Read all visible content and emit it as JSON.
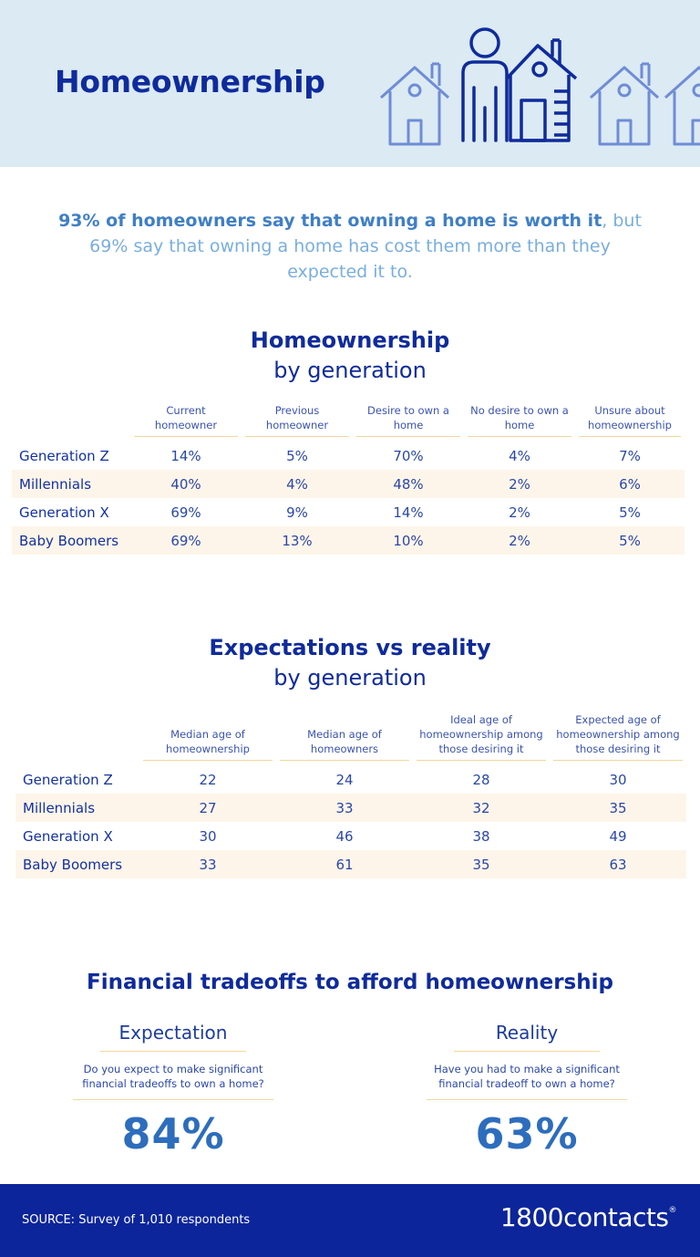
{
  "header": {
    "title": "Homeownership"
  },
  "intro": {
    "bold": "93% of homeowners say that owning a home is worth it",
    "rest": ", but 69% say that owning a home has cost them more than they expected it to."
  },
  "ownership": {
    "title": "Homeownership",
    "subtitle": "by generation",
    "columns": [
      "Current homeowner",
      "Previous homeowner",
      "Desire to own a home",
      "No desire to own a home",
      "Unsure about homeownership"
    ],
    "rows": [
      {
        "label": "Generation Z",
        "values": [
          "14%",
          "5%",
          "70%",
          "4%",
          "7%"
        ]
      },
      {
        "label": "Millennials",
        "values": [
          "40%",
          "4%",
          "48%",
          "2%",
          "6%"
        ]
      },
      {
        "label": "Generation X",
        "values": [
          "69%",
          "9%",
          "14%",
          "2%",
          "5%"
        ]
      },
      {
        "label": "Baby Boomers",
        "values": [
          "69%",
          "13%",
          "10%",
          "2%",
          "5%"
        ]
      }
    ]
  },
  "expectations": {
    "title": "Expectations vs reality",
    "subtitle": "by generation",
    "columns": [
      "Median age of homeownership",
      "Median age of homeowners",
      "Ideal age of homeownership among those desiring it",
      "Expected age of homeownership among those desiring it"
    ],
    "rows": [
      {
        "label": "Generation Z",
        "values": [
          "22",
          "24",
          "28",
          "30"
        ]
      },
      {
        "label": "Millennials",
        "values": [
          "27",
          "33",
          "32",
          "35"
        ]
      },
      {
        "label": "Generation X",
        "values": [
          "30",
          "46",
          "38",
          "49"
        ]
      },
      {
        "label": "Baby Boomers",
        "values": [
          "33",
          "61",
          "35",
          "63"
        ]
      }
    ]
  },
  "tradeoffs": {
    "title": "Financial tradeoffs to afford homeownership",
    "expectation": {
      "heading": "Expectation",
      "question": "Do you expect to make significant financial tradeoffs to own a home?",
      "value": "84%"
    },
    "reality": {
      "heading": "Reality",
      "question": "Have you had to make a significant financial tradeoff to own a home?",
      "value": "63%"
    }
  },
  "footer": {
    "source": "SOURCE: Survey of 1,010 respondents",
    "logo": "1800contacts",
    "logo_mark": "®"
  },
  "colors": {
    "navy": "#0f2b9b",
    "header_bg": "#dbeaf3",
    "row_alt": "#fdf5e9",
    "rule": "#f2d79a",
    "accent_blue": "#2d6dbd",
    "icon_blue": "#6f8cd6"
  },
  "icons": [
    "house-outline-icon",
    "person-icon",
    "house-tall-icon"
  ]
}
